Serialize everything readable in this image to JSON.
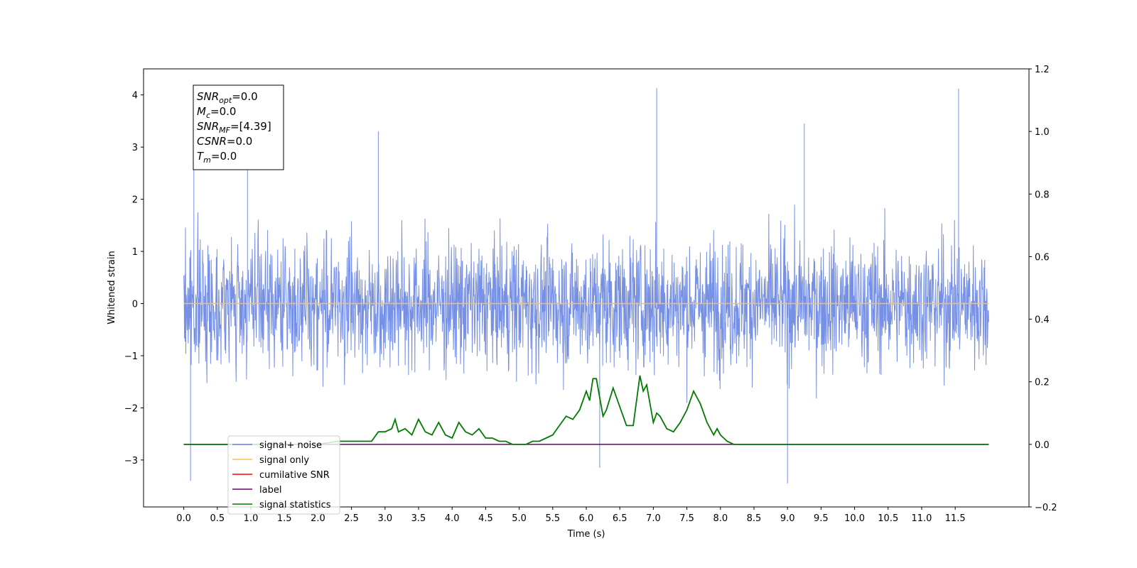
{
  "chart_data": {
    "type": "line",
    "xlabel": "Time (s)",
    "ylabel": "Whitened strain",
    "xlim": [
      -0.6,
      12.6
    ],
    "ylim": [
      -3.9,
      4.5
    ],
    "y2lim": [
      -0.2,
      1.2
    ],
    "x_ticks": [
      "0.0",
      "0.5",
      "1.0",
      "1.5",
      "2.0",
      "2.5",
      "3.0",
      "3.5",
      "4.0",
      "4.5",
      "5.0",
      "5.5",
      "6.0",
      "6.5",
      "7.0",
      "7.5",
      "8.0",
      "8.5",
      "9.0",
      "9.5",
      "10.0",
      "10.5",
      "11.0",
      "11.5"
    ],
    "y_ticks": [
      "4",
      "3",
      "2",
      "1",
      "0",
      "−1",
      "−2",
      "−3"
    ],
    "y2_ticks": [
      "1.2",
      "1.0",
      "0.8",
      "0.6",
      "0.4",
      "0.2",
      "0.0",
      "−0.2"
    ],
    "grid": false,
    "legend_position": "lower-left",
    "noise": {
      "name": "signal+ noise",
      "color": "#6a87e3",
      "x_range": [
        0.0,
        12.0
      ],
      "typical_band": [
        -1.3,
        1.4
      ],
      "min": -3.45,
      "max": 4.13
    },
    "series": [
      {
        "name": "signal only",
        "color": "#ffc04d",
        "axis": "left",
        "x": [
          0.0,
          12.0
        ],
        "y": [
          0.0,
          0.0
        ]
      },
      {
        "name": "cumilative SNR",
        "color": "#ff0000",
        "axis": "right",
        "x": [],
        "y": []
      },
      {
        "name": "label",
        "color": "#6b006b",
        "axis": "right",
        "x": [
          0.0,
          12.0
        ],
        "y": [
          0.0,
          0.0
        ]
      },
      {
        "name": "signal statistics",
        "color": "#007a00",
        "axis": "right",
        "x": [
          0.0,
          0.5,
          1.0,
          1.5,
          2.0,
          2.3,
          2.5,
          2.8,
          2.9,
          3.0,
          3.1,
          3.15,
          3.2,
          3.3,
          3.4,
          3.5,
          3.6,
          3.7,
          3.8,
          3.9,
          4.0,
          4.1,
          4.2,
          4.3,
          4.4,
          4.5,
          4.6,
          4.7,
          4.8,
          4.9,
          5.0,
          5.1,
          5.2,
          5.3,
          5.4,
          5.5,
          5.6,
          5.7,
          5.8,
          5.9,
          6.0,
          6.05,
          6.1,
          6.15,
          6.2,
          6.25,
          6.3,
          6.4,
          6.5,
          6.55,
          6.6,
          6.7,
          6.8,
          6.85,
          6.9,
          6.95,
          7.0,
          7.05,
          7.1,
          7.2,
          7.3,
          7.4,
          7.5,
          7.6,
          7.65,
          7.7,
          7.8,
          7.9,
          7.95,
          8.0,
          8.1,
          8.2,
          8.3,
          8.4,
          9.0,
          10.0,
          11.0,
          12.0
        ],
        "y": [
          0.0,
          0.0,
          0.0,
          0.0,
          0.0,
          0.01,
          0.01,
          0.01,
          0.04,
          0.04,
          0.05,
          0.08,
          0.04,
          0.05,
          0.03,
          0.08,
          0.04,
          0.03,
          0.07,
          0.03,
          0.02,
          0.07,
          0.04,
          0.03,
          0.05,
          0.02,
          0.02,
          0.01,
          0.01,
          0.0,
          0.0,
          0.0,
          0.01,
          0.01,
          0.02,
          0.03,
          0.06,
          0.09,
          0.08,
          0.11,
          0.17,
          0.14,
          0.21,
          0.21,
          0.15,
          0.09,
          0.11,
          0.18,
          0.12,
          0.09,
          0.06,
          0.06,
          0.22,
          0.17,
          0.19,
          0.13,
          0.07,
          0.1,
          0.09,
          0.05,
          0.04,
          0.07,
          0.11,
          0.17,
          0.15,
          0.13,
          0.07,
          0.03,
          0.05,
          0.03,
          0.01,
          0.0,
          0.0,
          0.0,
          0.0,
          0.0,
          0.0,
          0.0
        ]
      }
    ],
    "annotation": {
      "lines": [
        {
          "main": "SNR",
          "sub": "opt",
          "value": "=0.0"
        },
        {
          "main": "M",
          "sub": "c",
          "value": "=0.0"
        },
        {
          "main": "SNR",
          "sub": "MF",
          "value": "=[4.39]"
        },
        {
          "main": "CSNR",
          "sub": "",
          "value": "=0.0"
        },
        {
          "main": "T",
          "sub": "m",
          "value": "=0.0"
        }
      ]
    },
    "legend": [
      {
        "label": "signal+ noise",
        "color": "#6a87e3"
      },
      {
        "label": "signal only",
        "color": "#ffc04d"
      },
      {
        "label": "cumilative SNR",
        "color": "#ff0000"
      },
      {
        "label": "label",
        "color": "#6b006b"
      },
      {
        "label": "signal statistics",
        "color": "#007a00"
      }
    ]
  }
}
